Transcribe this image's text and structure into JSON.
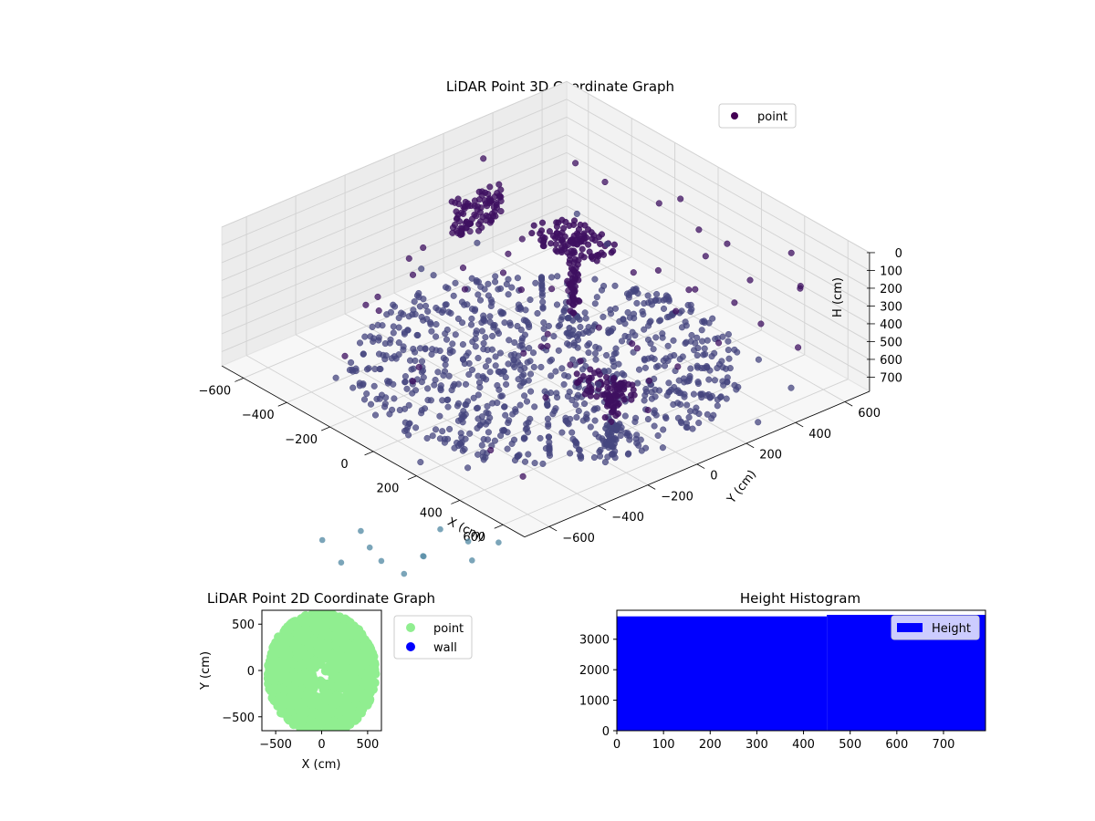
{
  "chart_data": [
    {
      "type": "scatter",
      "projection": "3d",
      "title": "LiDAR Point 3D Coordinate Graph",
      "xlabel": "X (cm)",
      "ylabel": "Y (cm)",
      "zlabel": "H (cm)",
      "xlim": [
        -700,
        700
      ],
      "ylim": [
        -700,
        700
      ],
      "zlim": [
        780,
        0
      ],
      "xticks": [
        "−600",
        "−400",
        "−200",
        "0",
        "200",
        "400",
        "600"
      ],
      "yticks": [
        "−600",
        "−400",
        "−200",
        "0",
        "200",
        "400",
        "600"
      ],
      "zticks": [
        "0",
        "100",
        "200",
        "300",
        "400",
        "500",
        "600",
        "700"
      ],
      "legend": {
        "placement": "upper-right",
        "label": "point"
      },
      "colors": {
        "ground": "#45467f",
        "structure": "#3e1060",
        "outlier": "#5a8ea8",
        "legend_marker": "#440154"
      },
      "series": [
        {
          "name": "point",
          "clusters": [
            {
              "kind": "ground-disk",
              "center": [
                0,
                0,
                740
              ],
              "radius": 600,
              "count": 900
            },
            {
              "kind": "tower",
              "base": [
                -100,
                200,
                740
              ],
              "top": [
                -100,
                200,
                180
              ],
              "count": 70
            },
            {
              "kind": "canopy",
              "center": [
                -100,
                200,
                180
              ],
              "radius": 160,
              "count": 90
            },
            {
              "kind": "tower",
              "base": [
                480,
                -150,
                740
              ],
              "top": [
                480,
                -150,
                420
              ],
              "count": 60
            },
            {
              "kind": "canopy",
              "center": [
                450,
                -150,
                430
              ],
              "radius": 120,
              "count": 60
            },
            {
              "kind": "wall",
              "center": [
                -650,
                300,
                450
              ],
              "extent": 200,
              "count": 90
            },
            {
              "kind": "scatter",
              "range": [
                [
                  -700,
                  700
                ],
                [
                  -700,
                  700
                ],
                [
                  150,
                  780
                ]
              ],
              "count": 80
            }
          ]
        }
      ]
    },
    {
      "type": "scatter",
      "title": "LiDAR Point 2D Coordinate Graph",
      "xlabel": "X (cm)",
      "ylabel": "Y (cm)",
      "xlim": [
        -650,
        650
      ],
      "ylim": [
        -650,
        650
      ],
      "xticks": [
        -500,
        0,
        500
      ],
      "yticks": [
        -500,
        0,
        500
      ],
      "legend": {
        "placement": "outside-right",
        "entries": [
          "point",
          "wall"
        ]
      },
      "colors": {
        "point": "#90ee90",
        "wall": "#0000ff"
      },
      "series": [
        {
          "name": "point",
          "shape": "disk",
          "center": [
            0,
            0
          ],
          "radius": 620,
          "count": 1500
        },
        {
          "name": "wall",
          "count": 0
        }
      ]
    },
    {
      "type": "bar",
      "title": "Height Histogram",
      "xlabel": "",
      "ylabel": "",
      "xlim": [
        0,
        790
      ],
      "ylim": [
        0,
        3950
      ],
      "xticks": [
        0,
        100,
        200,
        300,
        400,
        500,
        600,
        700
      ],
      "yticks": [
        0,
        1000,
        2000,
        3000
      ],
      "legend": {
        "placement": "upper-right",
        "label": "Height"
      },
      "colors": {
        "bar": "#0000ff"
      },
      "series": [
        {
          "name": "Height",
          "bins": [
            {
              "x0": 0,
              "x1": 450,
              "value": 3750
            },
            {
              "x0": 450,
              "x1": 790,
              "value": 3800
            }
          ]
        }
      ]
    }
  ]
}
